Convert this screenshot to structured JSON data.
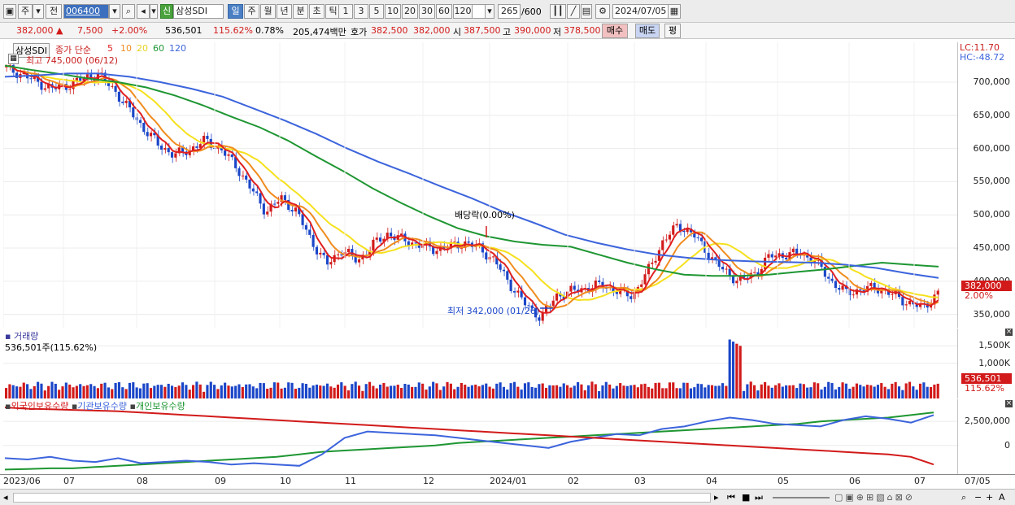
{
  "toolbar": {
    "market": "주",
    "prev": "전",
    "code": "006400",
    "name_badge": "신",
    "name": "삼성SDI",
    "periods": [
      "일",
      "주",
      "월",
      "년",
      "분",
      "초",
      "틱"
    ],
    "numbers": [
      "1",
      "3",
      "5",
      "10",
      "20",
      "30",
      "60",
      "120"
    ],
    "count": "265",
    "count_total": "/600",
    "date": "2024/07/05"
  },
  "info": {
    "price": "382,000",
    "arrow": "▲",
    "change": "7,500",
    "change_pct": "+2.00%",
    "volume": "536,501",
    "vol_ratio": "115.62%",
    "turnover": "0.78%",
    "amount": "205,474백만",
    "bid_label": "호가",
    "ask": "382,500",
    "bid": "382,000",
    "open_label": "시",
    "open": "387,500",
    "high_label": "고",
    "high": "390,000",
    "low_label": "저",
    "low": "378,500",
    "buy": "매수",
    "sell": "매도",
    "avg": "평"
  },
  "price_panel": {
    "name": "삼성SDI",
    "series_label": "종가 단순",
    "ma": [
      "5",
      "10",
      "20",
      "60",
      "120"
    ],
    "high_note": "최고 745,000 (06/12)",
    "low_note": "최저 342,000 (01/26)",
    "div_note": "배당락(0.00%)",
    "lc": "LC:11.70",
    "hc": "HC:-48.72",
    "price_tag": "382,000",
    "pct_tag": "2.00%"
  },
  "volume_panel": {
    "title": "거래량",
    "value": "536,501주(115.62%)",
    "tag": "536,501",
    "pct_tag": "115.62%"
  },
  "holding_panel": {
    "legend": [
      "외국인보유수량",
      "기관보유수량",
      "개인보유수량"
    ]
  },
  "colors": {
    "up": "#d21a1a",
    "down": "#1a46c8",
    "ma5": "#e02020",
    "ma10": "#f08c1e",
    "ma20": "#f5e11e",
    "ma60": "#1e9632",
    "ma120": "#3c64dc"
  },
  "chart_data": {
    "type": "line",
    "price_axis": {
      "ticks": [
        "700,000",
        "650,000",
        "600,000",
        "550,000",
        "500,000",
        "450,000",
        "400,000",
        "350,000"
      ],
      "ylim": [
        330000,
        760000
      ]
    },
    "volume_axis": {
      "ticks": [
        "1,500K",
        "1,000K"
      ]
    },
    "holding_axis": {
      "ticks": [
        "2,500,000",
        "0"
      ]
    },
    "x_labels": [
      "2023/06",
      "07",
      "08",
      "09",
      "10",
      "11",
      "12",
      "2024/01",
      "02",
      "03",
      "04",
      "05",
      "06",
      "07",
      "07/05"
    ],
    "close_path": {
      "name": "종가",
      "values": [
        720000,
        712000,
        700000,
        690000,
        695000,
        705000,
        712000,
        690000,
        660000,
        630000,
        605000,
        590000,
        598000,
        612000,
        600000,
        575000,
        540000,
        505000,
        525000,
        505000,
        460000,
        425000,
        448000,
        430000,
        455000,
        472000,
        462000,
        455000,
        448000,
        452000,
        458000,
        450000,
        430000,
        395000,
        365000,
        345000,
        378000,
        385000,
        390000,
        395000,
        385000,
        378000,
        415000,
        460000,
        485000,
        470000,
        440000,
        415000,
        400000,
        412000,
        438000,
        440000,
        442000,
        430000,
        400000,
        382000,
        388000,
        390000,
        380000,
        368000,
        360000,
        382000
      ]
    },
    "ma60": {
      "name": "60",
      "values": [
        725000,
        718000,
        712000,
        705000,
        700000,
        692000,
        680000,
        665000,
        648000,
        632000,
        612000,
        588000,
        565000,
        540000,
        518000,
        498000,
        480000,
        468000,
        460000,
        455000,
        452000,
        440000,
        428000,
        418000,
        410000,
        408000,
        408000,
        410000,
        414000,
        418000,
        423000,
        428000,
        425000,
        422000
      ]
    },
    "ma120": {
      "name": "120",
      "values": [
        708000,
        710000,
        713000,
        713000,
        708000,
        700000,
        690000,
        678000,
        660000,
        642000,
        622000,
        600000,
        580000,
        562000,
        543000,
        525000,
        505000,
        488000,
        470000,
        458000,
        448000,
        440000,
        435000,
        432000,
        430000,
        429000,
        428000,
        425000,
        420000,
        412000,
        405000
      ]
    },
    "foreign_holding": {
      "name": "외국인보유수량",
      "values": [
        100,
        98,
        97,
        96,
        95,
        94,
        92,
        90,
        88,
        86,
        84,
        82,
        80,
        78,
        76,
        74,
        72,
        70,
        68,
        66,
        64,
        62,
        60,
        58,
        56,
        54,
        52,
        50,
        48,
        46,
        44,
        42,
        40,
        38,
        36,
        34,
        32,
        30,
        28,
        26,
        22,
        10
      ]
    },
    "institution_holding": {
      "name": "기관보유수량",
      "values": [
        20,
        18,
        22,
        16,
        14,
        20,
        12,
        14,
        16,
        14,
        10,
        12,
        10,
        8,
        26,
        52,
        62,
        60,
        58,
        56,
        52,
        48,
        44,
        40,
        36,
        46,
        52,
        58,
        56,
        66,
        70,
        78,
        84,
        80,
        74,
        72,
        70,
        80,
        86,
        82,
        76,
        88
      ]
    },
    "individual_holding": {
      "name": "개인보유수량",
      "values": [
        2,
        3,
        4,
        4,
        6,
        8,
        10,
        12,
        14,
        16,
        18,
        20,
        22,
        26,
        30,
        32,
        34,
        36,
        38,
        40,
        44,
        46,
        48,
        50,
        52,
        54,
        56,
        58,
        60,
        62,
        64,
        66,
        68,
        70,
        72,
        74,
        78,
        80,
        82,
        84,
        88,
        92
      ]
    }
  }
}
